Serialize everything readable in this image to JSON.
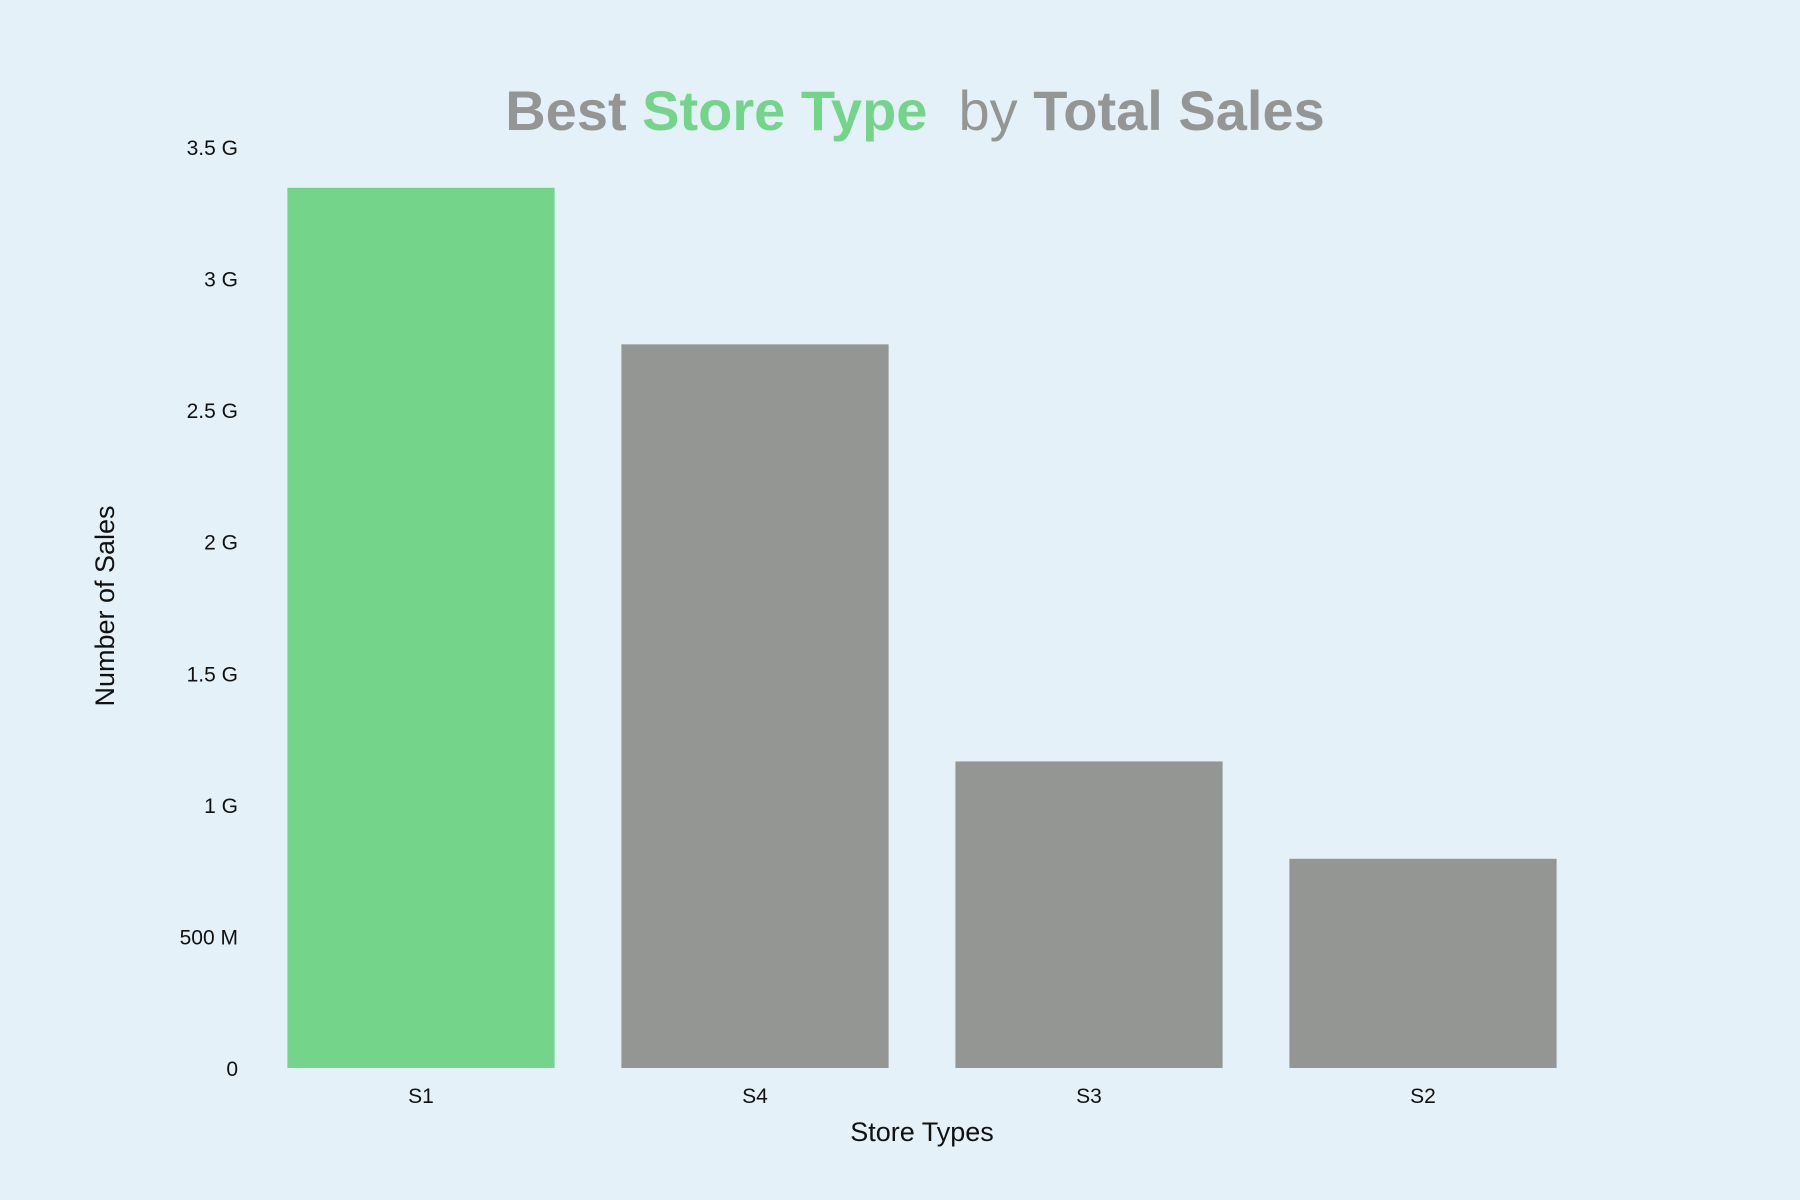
{
  "chart_data": {
    "type": "bar",
    "title_parts": [
      {
        "text": "Best ",
        "weight": "bold",
        "color": "#949694"
      },
      {
        "text": "Store Type",
        "weight": "bold",
        "color": "#73d48a"
      },
      {
        "text": "  by ",
        "weight": "normal",
        "color": "#949694"
      },
      {
        "text": "Total Sales",
        "weight": "bold",
        "color": "#949694"
      }
    ],
    "xlabel": "Store Types",
    "ylabel": "Number of Sales",
    "categories": [
      "S1",
      "S4",
      "S3",
      "S2"
    ],
    "values": [
      3345000000,
      2750000000,
      1165000000,
      795000000
    ],
    "bar_colors": [
      "#73d48a",
      "#949694",
      "#949694",
      "#949694"
    ],
    "ylim": [
      0,
      3500000000
    ],
    "yticks": [
      {
        "value": 0,
        "label": "0"
      },
      {
        "value": 500000000,
        "label": "500 M"
      },
      {
        "value": 1000000000,
        "label": "1 G"
      },
      {
        "value": 1500000000,
        "label": "1.5 G"
      },
      {
        "value": 2000000000,
        "label": "2 G"
      },
      {
        "value": 2500000000,
        "label": "2.5 G"
      },
      {
        "value": 3000000000,
        "label": "3 G"
      },
      {
        "value": 3500000000,
        "label": "3.5 G"
      }
    ],
    "grid": false,
    "background_color": "#e4f1f8",
    "text_color": "#111111"
  }
}
